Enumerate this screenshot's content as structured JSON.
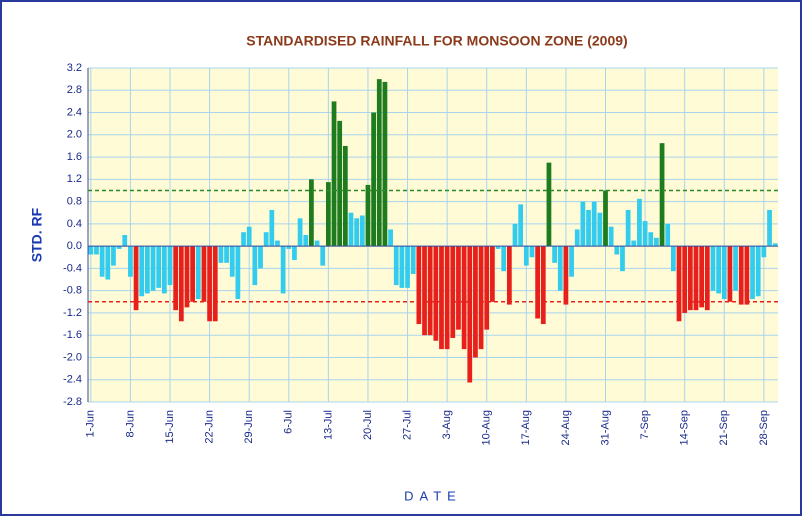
{
  "chart_data": {
    "type": "bar",
    "title": "STANDARDISED RAINFALL FOR MONSOON ZONE (2009)",
    "x_label": "DATE",
    "y_label": "STD. RF",
    "categories": [
      "1-Jun",
      null,
      null,
      null,
      null,
      null,
      null,
      "8-Jun",
      null,
      null,
      null,
      null,
      null,
      null,
      "15-Jun",
      null,
      null,
      null,
      null,
      null,
      null,
      "22-Jun",
      null,
      null,
      null,
      null,
      null,
      null,
      "29-Jun",
      null,
      null,
      null,
      null,
      null,
      null,
      "6-Jul",
      null,
      null,
      null,
      null,
      null,
      null,
      "13-Jul",
      null,
      null,
      null,
      null,
      null,
      null,
      "20-Jul",
      null,
      null,
      null,
      null,
      null,
      null,
      "27-Jul",
      null,
      null,
      null,
      null,
      null,
      null,
      "3-Aug",
      null,
      null,
      null,
      null,
      null,
      null,
      "10-Aug",
      null,
      null,
      null,
      null,
      null,
      null,
      "17-Aug",
      null,
      null,
      null,
      null,
      null,
      null,
      "24-Aug",
      null,
      null,
      null,
      null,
      null,
      null,
      "31-Aug",
      null,
      null,
      null,
      null,
      null,
      null,
      "7-Sep",
      null,
      null,
      null,
      null,
      null,
      null,
      "14-Sep",
      null,
      null,
      null,
      null,
      null,
      null,
      "21-Sep",
      null,
      null,
      null,
      null,
      null,
      null,
      "28-Sep",
      null,
      null
    ],
    "values": [
      -0.15,
      -0.15,
      -0.55,
      -0.6,
      -0.35,
      -0.05,
      0.2,
      -0.55,
      -1.15,
      -0.9,
      -0.85,
      -0.8,
      -0.75,
      -0.85,
      -0.7,
      -1.15,
      -1.35,
      -1.1,
      -1.0,
      -0.95,
      -1.0,
      -1.35,
      -1.35,
      -0.3,
      -0.3,
      -0.55,
      -0.95,
      0.25,
      0.35,
      -0.7,
      -0.4,
      0.25,
      0.65,
      0.1,
      -0.85,
      -0.05,
      -0.25,
      0.5,
      0.2,
      1.2,
      0.1,
      -0.35,
      1.15,
      2.6,
      2.25,
      1.8,
      0.6,
      0.5,
      0.55,
      1.1,
      2.4,
      3.0,
      2.95,
      0.3,
      -0.7,
      -0.75,
      -0.75,
      -0.5,
      -1.4,
      -1.6,
      -1.6,
      -1.7,
      -1.85,
      -1.85,
      -1.65,
      -1.5,
      -1.85,
      -2.45,
      -2.0,
      -1.85,
      -1.5,
      -1.0,
      -0.05,
      -0.45,
      -1.05,
      0.4,
      0.75,
      -0.35,
      -0.2,
      -1.3,
      -1.4,
      1.5,
      -0.3,
      -0.8,
      -1.05,
      -0.55,
      0.3,
      0.8,
      0.65,
      0.8,
      0.6,
      1.0,
      0.35,
      -0.15,
      -0.45,
      0.65,
      0.1,
      0.85,
      0.45,
      0.25,
      0.15,
      1.85,
      0.4,
      -0.45,
      -1.35,
      -1.2,
      -1.15,
      -1.15,
      -1.1,
      -1.15,
      -0.8,
      -0.85,
      -0.95,
      -1.0,
      -0.8,
      -1.05,
      -1.05,
      -0.95,
      -0.9,
      -0.2,
      0.65,
      0.05
    ],
    "colors": {
      "above": "#1e7b1e",
      "below": "#e8201c",
      "normal": "#33ccee"
    },
    "reference_lines": [
      {
        "value": 1,
        "color": "#2a8a2a"
      },
      {
        "value": -1,
        "color": "#e8201c"
      }
    ],
    "ylim": [
      -2.8,
      3.2
    ],
    "yticks": [
      3.2,
      2.8,
      2.4,
      {
        "value": 2,
        "label": "2.0"
      },
      1.6,
      1.2,
      0.8,
      0.4,
      {
        "value": 0,
        "label": "0.0"
      },
      -0.4,
      -0.8,
      -1.2,
      -1.6,
      {
        "value": -2,
        "label": "-2.0"
      },
      -2.4,
      -2.8
    ],
    "grid": true
  }
}
